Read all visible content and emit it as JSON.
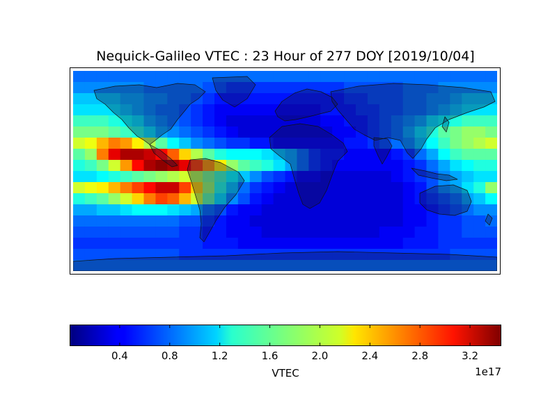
{
  "title": "Nequick-Galileo VTEC : 23 Hour of 277 DOY [2019/10/04]",
  "chart_data": {
    "type": "heatmap",
    "title": "Nequick-Galileo VTEC : 23 Hour of 277 DOY [2019/10/04]",
    "colormap": "jet",
    "colorbar": {
      "label": "VTEC",
      "offset_text": "1e17",
      "range": [
        0.0,
        3.45
      ],
      "ticks": [
        0.4,
        0.8,
        1.2,
        1.6,
        2.0,
        2.4,
        2.8,
        3.2
      ],
      "tick_labels": [
        "0.4",
        "0.8",
        "1.2",
        "1.6",
        "2.0",
        "2.4",
        "2.8",
        "3.2"
      ]
    },
    "grid": {
      "lon_range": [
        -180,
        180
      ],
      "lat_range": [
        -87.5,
        87.5
      ],
      "note_units": "VTEC in units of 1e17",
      "lat_rows": [
        87.5,
        77.5,
        67.5,
        57.5,
        47.5,
        37.5,
        27.5,
        17.5,
        7.5,
        -2.5,
        -12.5,
        -22.5,
        -32.5,
        -42.5,
        -52.5,
        -62.5,
        -72.5,
        -82.5
      ],
      "lon_cols": [
        -175,
        -165,
        -155,
        -145,
        -135,
        -125,
        -115,
        -105,
        -95,
        -85,
        -75,
        -65,
        -55,
        -45,
        -35,
        -25,
        -15,
        -5,
        5,
        15,
        25,
        35,
        45,
        55,
        65,
        75,
        85,
        95,
        105,
        115,
        125,
        135,
        145,
        155,
        165,
        175
      ],
      "values": [
        [
          0.8,
          0.8,
          0.8,
          0.8,
          0.8,
          0.8,
          0.8,
          0.8,
          0.8,
          0.8,
          0.8,
          0.8,
          0.8,
          0.8,
          0.8,
          0.8,
          0.8,
          0.8,
          0.8,
          0.8,
          0.8,
          0.8,
          0.8,
          0.8,
          0.8,
          0.8,
          0.8,
          0.8,
          0.8,
          0.8,
          0.8,
          0.8,
          0.8,
          0.8,
          0.8,
          0.8
        ],
        [
          0.9,
          0.9,
          0.9,
          0.9,
          0.9,
          0.9,
          0.8,
          0.8,
          0.8,
          0.8,
          0.8,
          0.7,
          0.7,
          0.6,
          0.6,
          0.6,
          0.6,
          0.6,
          0.6,
          0.6,
          0.6,
          0.6,
          0.6,
          0.7,
          0.7,
          0.7,
          0.7,
          0.7,
          0.8,
          0.8,
          0.8,
          0.9,
          0.9,
          0.9,
          0.9,
          0.9
        ],
        [
          1.1,
          1.1,
          1.1,
          1.1,
          1.0,
          1.0,
          0.9,
          0.9,
          0.8,
          0.8,
          0.7,
          0.6,
          0.5,
          0.5,
          0.5,
          0.5,
          0.5,
          0.5,
          0.5,
          0.5,
          0.5,
          0.5,
          0.5,
          0.6,
          0.6,
          0.7,
          0.7,
          0.7,
          0.8,
          0.8,
          0.9,
          0.9,
          1.0,
          1.1,
          1.1,
          1.1
        ],
        [
          1.2,
          1.2,
          1.2,
          1.2,
          1.1,
          1.0,
          0.9,
          0.8,
          0.8,
          0.7,
          0.6,
          0.5,
          0.4,
          0.4,
          0.4,
          0.4,
          0.4,
          0.4,
          0.4,
          0.4,
          0.4,
          0.5,
          0.5,
          0.5,
          0.6,
          0.6,
          0.7,
          0.7,
          0.8,
          0.8,
          0.9,
          1.0,
          1.1,
          1.2,
          1.2,
          1.2
        ],
        [
          1.5,
          1.5,
          1.5,
          1.4,
          1.3,
          1.2,
          1.0,
          0.9,
          0.8,
          0.7,
          0.6,
          0.5,
          0.4,
          0.3,
          0.3,
          0.3,
          0.3,
          0.3,
          0.3,
          0.3,
          0.3,
          0.4,
          0.4,
          0.5,
          0.5,
          0.6,
          0.7,
          0.8,
          0.9,
          1.0,
          1.2,
          1.3,
          1.4,
          1.5,
          1.5,
          1.5
        ],
        [
          1.7,
          1.7,
          1.7,
          1.6,
          1.5,
          1.4,
          1.2,
          1.0,
          0.9,
          0.8,
          0.7,
          0.6,
          0.5,
          0.4,
          0.3,
          0.3,
          0.3,
          0.3,
          0.3,
          0.3,
          0.3,
          0.3,
          0.4,
          0.4,
          0.5,
          0.6,
          0.7,
          0.8,
          1.0,
          1.2,
          1.4,
          1.6,
          1.7,
          1.8,
          1.8,
          1.7
        ],
        [
          2.0,
          2.1,
          2.4,
          2.6,
          2.5,
          2.2,
          1.9,
          1.6,
          1.3,
          1.1,
          0.9,
          0.8,
          0.7,
          0.6,
          0.6,
          0.5,
          0.5,
          0.4,
          0.4,
          0.4,
          0.4,
          0.4,
          0.4,
          0.5,
          0.5,
          0.6,
          0.7,
          0.8,
          0.9,
          1.1,
          1.3,
          1.5,
          1.7,
          1.8,
          1.9,
          2.0
        ],
        [
          1.6,
          1.8,
          2.6,
          3.1,
          3.3,
          3.3,
          3.2,
          3.0,
          2.7,
          2.3,
          1.9,
          1.6,
          1.4,
          1.3,
          1.3,
          1.3,
          1.2,
          1.1,
          1.0,
          0.8,
          0.6,
          0.5,
          0.5,
          0.4,
          0.4,
          0.4,
          0.4,
          0.5,
          0.6,
          0.8,
          1.0,
          1.3,
          1.5,
          1.6,
          1.6,
          1.6
        ],
        [
          1.4,
          1.5,
          1.7,
          2.0,
          2.5,
          3.0,
          3.3,
          3.4,
          3.3,
          3.1,
          2.8,
          2.5,
          2.2,
          1.8,
          1.6,
          1.5,
          1.4,
          1.2,
          1.0,
          0.8,
          0.6,
          0.5,
          0.4,
          0.4,
          0.4,
          0.4,
          0.4,
          0.4,
          0.5,
          0.6,
          0.8,
          1.0,
          1.2,
          1.3,
          1.4,
          1.4
        ],
        [
          1.2,
          1.2,
          1.3,
          1.4,
          1.5,
          1.6,
          1.7,
          1.8,
          1.9,
          2.0,
          1.9,
          1.7,
          1.5,
          1.3,
          1.1,
          0.9,
          0.7,
          0.6,
          0.5,
          0.4,
          0.4,
          0.3,
          0.3,
          0.3,
          0.3,
          0.3,
          0.3,
          0.4,
          0.5,
          0.6,
          0.7,
          0.9,
          1.0,
          1.1,
          1.2,
          1.2
        ],
        [
          2.0,
          2.1,
          2.2,
          2.4,
          2.6,
          2.8,
          3.0,
          3.2,
          3.2,
          2.8,
          2.3,
          1.8,
          1.4,
          1.1,
          0.8,
          0.6,
          0.5,
          0.4,
          0.3,
          0.3,
          0.3,
          0.3,
          0.3,
          0.3,
          0.3,
          0.3,
          0.3,
          0.3,
          0.4,
          0.5,
          0.7,
          0.9,
          1.0,
          1.2,
          1.4,
          1.8
        ],
        [
          1.4,
          1.5,
          1.6,
          1.8,
          2.0,
          2.3,
          2.6,
          2.8,
          2.7,
          2.4,
          2.0,
          1.6,
          1.2,
          0.9,
          0.7,
          0.5,
          0.4,
          0.3,
          0.3,
          0.3,
          0.3,
          0.3,
          0.3,
          0.3,
          0.3,
          0.3,
          0.3,
          0.3,
          0.4,
          0.5,
          0.6,
          0.7,
          0.8,
          1.0,
          1.1,
          1.3
        ],
        [
          1.0,
          1.0,
          1.1,
          1.1,
          1.2,
          1.3,
          1.3,
          1.3,
          1.2,
          1.1,
          1.0,
          0.8,
          0.7,
          0.5,
          0.4,
          0.4,
          0.3,
          0.3,
          0.3,
          0.3,
          0.3,
          0.3,
          0.3,
          0.3,
          0.3,
          0.3,
          0.3,
          0.3,
          0.4,
          0.4,
          0.5,
          0.6,
          0.7,
          0.8,
          0.9,
          0.9
        ],
        [
          0.8,
          0.8,
          0.8,
          0.8,
          0.8,
          0.8,
          0.8,
          0.8,
          0.8,
          0.7,
          0.7,
          0.6,
          0.5,
          0.4,
          0.4,
          0.3,
          0.3,
          0.3,
          0.3,
          0.3,
          0.3,
          0.3,
          0.3,
          0.3,
          0.3,
          0.3,
          0.3,
          0.3,
          0.4,
          0.4,
          0.5,
          0.6,
          0.6,
          0.7,
          0.7,
          0.8
        ],
        [
          0.7,
          0.7,
          0.7,
          0.7,
          0.7,
          0.7,
          0.7,
          0.7,
          0.7,
          0.6,
          0.6,
          0.5,
          0.5,
          0.4,
          0.4,
          0.4,
          0.3,
          0.3,
          0.3,
          0.3,
          0.3,
          0.3,
          0.3,
          0.3,
          0.3,
          0.3,
          0.4,
          0.4,
          0.4,
          0.5,
          0.5,
          0.6,
          0.6,
          0.7,
          0.7,
          0.7
        ],
        [
          0.6,
          0.6,
          0.6,
          0.6,
          0.6,
          0.6,
          0.6,
          0.6,
          0.6,
          0.6,
          0.6,
          0.5,
          0.5,
          0.5,
          0.4,
          0.4,
          0.4,
          0.4,
          0.4,
          0.4,
          0.4,
          0.4,
          0.4,
          0.4,
          0.4,
          0.4,
          0.4,
          0.4,
          0.5,
          0.5,
          0.5,
          0.6,
          0.6,
          0.6,
          0.6,
          0.6
        ],
        [
          0.7,
          0.7,
          0.7,
          0.7,
          0.7,
          0.7,
          0.7,
          0.7,
          0.7,
          0.6,
          0.6,
          0.6,
          0.6,
          0.6,
          0.6,
          0.6,
          0.6,
          0.6,
          0.6,
          0.6,
          0.6,
          0.6,
          0.6,
          0.6,
          0.6,
          0.6,
          0.6,
          0.6,
          0.6,
          0.6,
          0.6,
          0.6,
          0.7,
          0.7,
          0.7,
          0.7
        ],
        [
          0.8,
          0.8,
          0.8,
          0.8,
          0.8,
          0.8,
          0.8,
          0.8,
          0.8,
          0.8,
          0.8,
          0.8,
          0.8,
          0.8,
          0.8,
          0.8,
          0.8,
          0.8,
          0.8,
          0.8,
          0.8,
          0.8,
          0.8,
          0.8,
          0.8,
          0.8,
          0.8,
          0.8,
          0.8,
          0.8,
          0.8,
          0.8,
          0.8,
          0.8,
          0.8,
          0.8
        ]
      ]
    },
    "overlay": "coastlines and country borders (world map, land shaded dark)"
  }
}
